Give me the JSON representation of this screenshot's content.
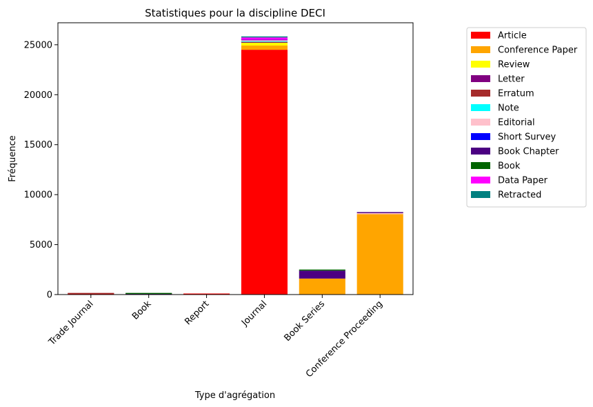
{
  "chart_data": {
    "type": "bar",
    "stacked": true,
    "title": "Statistiques pour la discipline DECI",
    "xlabel": "Type d'agrégation",
    "ylabel": "Fréquence",
    "categories": [
      "Trade Journal",
      "Book",
      "Report",
      "Journal",
      "Book Series",
      "Conference Proceeding"
    ],
    "ylim": [
      0,
      27200
    ],
    "yticks": [
      0,
      5000,
      10000,
      15000,
      20000,
      25000
    ],
    "grid": false,
    "legend_position": "outside-top-right",
    "series": [
      {
        "name": "Article",
        "color": "#ff0000",
        "values": [
          60,
          10,
          2,
          24500,
          0,
          0
        ]
      },
      {
        "name": "Conference Paper",
        "color": "#ffa500",
        "values": [
          0,
          0,
          0,
          420,
          1600,
          8050
        ]
      },
      {
        "name": "Review",
        "color": "#ffff00",
        "values": [
          0,
          0,
          0,
          280,
          0,
          0
        ]
      },
      {
        "name": "Letter",
        "color": "#800080",
        "values": [
          0,
          0,
          0,
          40,
          0,
          0
        ]
      },
      {
        "name": "Erratum",
        "color": "#a52a2a",
        "values": [
          5,
          0,
          0,
          40,
          0,
          0
        ]
      },
      {
        "name": "Note",
        "color": "#00ffff",
        "values": [
          0,
          0,
          0,
          60,
          0,
          0
        ]
      },
      {
        "name": "Editorial",
        "color": "#ffc0cb",
        "values": [
          0,
          0,
          0,
          110,
          0,
          100
        ]
      },
      {
        "name": "Short Survey",
        "color": "#0000ff",
        "values": [
          0,
          0,
          0,
          30,
          0,
          0
        ]
      },
      {
        "name": "Book Chapter",
        "color": "#4b0082",
        "values": [
          0,
          50,
          0,
          20,
          800,
          10
        ]
      },
      {
        "name": "Book",
        "color": "#006400",
        "values": [
          0,
          30,
          0,
          0,
          20,
          0
        ]
      },
      {
        "name": "Data Paper",
        "color": "#ff00ff",
        "values": [
          0,
          0,
          0,
          230,
          0,
          0
        ]
      },
      {
        "name": "Retracted",
        "color": "#008080",
        "values": [
          0,
          0,
          0,
          5,
          0,
          0
        ]
      }
    ]
  }
}
